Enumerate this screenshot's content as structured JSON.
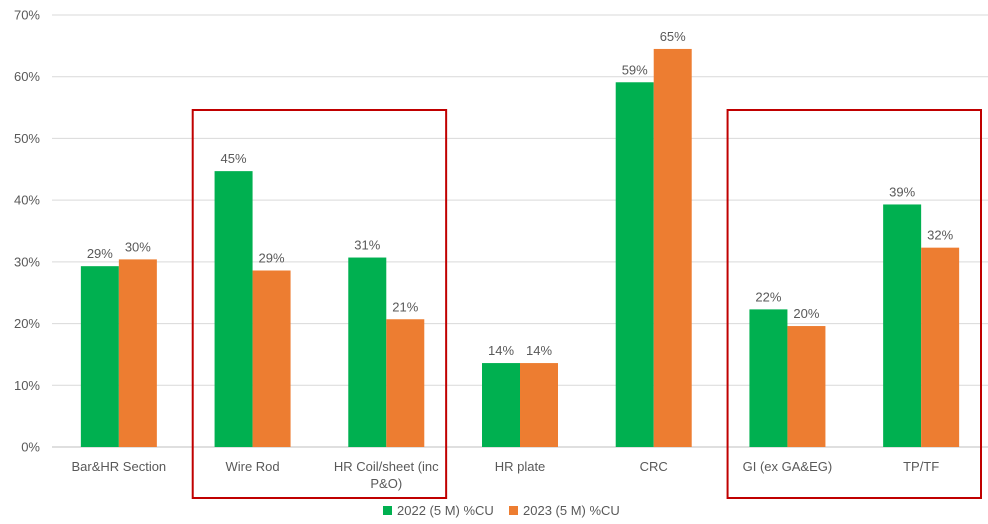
{
  "chart_data": {
    "type": "bar",
    "categories": [
      "Bar&HR Section",
      "Wire Rod",
      "HR Coil/sheet (inc P&O)",
      "HR plate",
      "CRC",
      "GI (ex GA&EG)",
      "TP/TF"
    ],
    "category_lines": [
      [
        "Bar&HR Section"
      ],
      [
        "Wire Rod"
      ],
      [
        "HR Coil/sheet (inc",
        "P&O)"
      ],
      [
        "HR plate"
      ],
      [
        "CRC"
      ],
      [
        "GI (ex GA&EG)"
      ],
      [
        "TP/TF"
      ]
    ],
    "series": [
      {
        "name": "2022 (5 M) %CU",
        "color": "#00b050",
        "values": [
          0.293,
          0.447,
          0.307,
          0.136,
          0.591,
          0.223,
          0.393
        ],
        "labels": [
          "29%",
          "45%",
          "31%",
          "14%",
          "59%",
          "22%",
          "39%"
        ]
      },
      {
        "name": "2023 (5 M) %CU",
        "color": "#ed7d31",
        "values": [
          0.304,
          0.286,
          0.207,
          0.136,
          0.645,
          0.196,
          0.323
        ],
        "labels": [
          "30%",
          "29%",
          "21%",
          "14%",
          "65%",
          "20%",
          "32%"
        ]
      }
    ],
    "y_ticks": [
      "0%",
      "10%",
      "20%",
      "30%",
      "40%",
      "50%",
      "60%",
      "70%"
    ],
    "ylim": [
      0,
      0.7
    ],
    "grid": true,
    "legend_position": "bottom",
    "highlight_color": "#c00000",
    "highlight_groups": [
      [
        1,
        2
      ],
      [
        5,
        6
      ]
    ],
    "title": "",
    "xlabel": "",
    "ylabel": ""
  }
}
